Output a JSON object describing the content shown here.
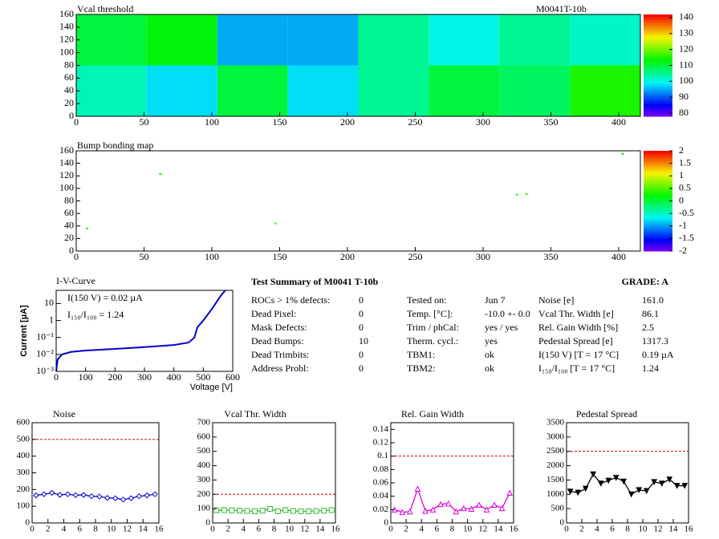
{
  "chart_data": [
    {
      "type": "heatmap",
      "title": "Vcal threshold",
      "subtitle": "M0041T-10b",
      "xbins": [
        0,
        52,
        104,
        156,
        208,
        260,
        312,
        364,
        416
      ],
      "ybins": [
        0,
        80,
        160
      ],
      "values": [
        [
          103,
          98,
          110,
          98,
          105,
          110,
          108,
          115
        ],
        [
          110,
          113,
          95,
          95,
          105,
          100,
          105,
          102
        ]
      ],
      "xlim": [
        0,
        416
      ],
      "xticks": [
        0,
        50,
        100,
        150,
        200,
        250,
        300,
        350,
        400
      ],
      "ylim": [
        0,
        160
      ],
      "yticks": [
        0,
        20,
        40,
        60,
        80,
        100,
        120,
        140,
        160
      ],
      "zlim": [
        78,
        142
      ],
      "zticks": [
        80,
        90,
        100,
        110,
        120,
        130,
        140
      ]
    },
    {
      "type": "scatter",
      "title": "Bump bonding map",
      "x": [
        8,
        62,
        147,
        325,
        332,
        403
      ],
      "y": [
        36,
        123,
        44,
        90,
        91,
        155
      ],
      "z": [
        0.4,
        0.3,
        0.5,
        0.3,
        0.4,
        0.2
      ],
      "xlim": [
        0,
        416
      ],
      "xticks": [
        0,
        50,
        100,
        150,
        200,
        250,
        300,
        350,
        400
      ],
      "ylim": [
        0,
        160
      ],
      "yticks": [
        0,
        20,
        40,
        60,
        80,
        100,
        120,
        140,
        160
      ],
      "zlim": [
        -2,
        2
      ],
      "zticks": [
        -2,
        -1.5,
        -1,
        -0.5,
        0,
        0.5,
        1,
        1.5,
        2
      ]
    },
    {
      "type": "line",
      "title": "I-V-Curve",
      "xlabel": "Voltage [V]",
      "ylabel": "Current [µA]",
      "annotations": [
        "I(150 V) = 0.02 µA",
        "I₁₅₀/I₁₀₀ =  1.24"
      ],
      "x": [
        0,
        5,
        20,
        50,
        100,
        200,
        300,
        400,
        450,
        470,
        480,
        500,
        530,
        560,
        575
      ],
      "series": [
        {
          "color": "#0000cc",
          "values": [
            0.001,
            0.005,
            0.01,
            0.014,
            0.017,
            0.021,
            0.027,
            0.036,
            0.05,
            0.1,
            0.4,
            1,
            5,
            30,
            60
          ]
        }
      ],
      "xlim": [
        0,
        600
      ],
      "xticks": [
        0,
        100,
        200,
        300,
        400,
        500,
        600
      ],
      "ylog": true,
      "ylim": [
        0.001,
        60
      ],
      "yticks": [
        {
          "value": 0.001,
          "label": "10⁻³"
        },
        {
          "value": 0.01,
          "label": "10⁻²"
        },
        {
          "value": 0.1,
          "label": "10⁻¹"
        },
        1,
        10
      ]
    },
    {
      "type": "line",
      "title": "Noise",
      "marker": "diamond",
      "threshold": 500,
      "x": [
        0.5,
        1.5,
        2.5,
        3.5,
        4.5,
        5.5,
        6.5,
        7.5,
        8.5,
        9.5,
        10.5,
        11.5,
        12.5,
        13.5,
        14.5,
        15.5
      ],
      "series": [
        {
          "color": "#0000cc",
          "values": [
            165,
            172,
            180,
            168,
            172,
            166,
            168,
            160,
            158,
            150,
            148,
            140,
            148,
            160,
            165,
            172
          ]
        }
      ],
      "xlim": [
        0,
        16
      ],
      "xticks": [
        0,
        2,
        4,
        6,
        8,
        10,
        12,
        14,
        16
      ],
      "ylim": [
        0,
        600
      ],
      "yticks": [
        0,
        100,
        200,
        300,
        400,
        500,
        600
      ]
    },
    {
      "type": "line",
      "title": "Vcal Thr. Width",
      "marker": "square",
      "threshold": 200,
      "x": [
        0.5,
        1.5,
        2.5,
        3.5,
        4.5,
        5.5,
        6.5,
        7.5,
        8.5,
        9.5,
        10.5,
        11.5,
        12.5,
        13.5,
        14.5,
        15.5
      ],
      "series": [
        {
          "color": "#33bb33",
          "values": [
            88,
            90,
            88,
            86,
            84,
            82,
            86,
            98,
            82,
            90,
            84,
            82,
            82,
            84,
            86,
            90
          ]
        }
      ],
      "xlim": [
        0,
        16
      ],
      "xticks": [
        0,
        2,
        4,
        6,
        8,
        10,
        12,
        14,
        16
      ],
      "ylim": [
        0,
        700
      ],
      "yticks": [
        0,
        100,
        200,
        300,
        400,
        500,
        600,
        700
      ]
    },
    {
      "type": "line",
      "title": "Rel. Gain Width",
      "marker": "triangle",
      "threshold": 0.1,
      "x": [
        0.5,
        1.5,
        2.5,
        3.5,
        4.5,
        5.5,
        6.5,
        7.5,
        8.5,
        9.5,
        10.5,
        11.5,
        12.5,
        13.5,
        14.5,
        15.5
      ],
      "series": [
        {
          "color": "#dd00dd",
          "values": [
            0.02,
            0.016,
            0.017,
            0.051,
            0.018,
            0.02,
            0.028,
            0.029,
            0.017,
            0.022,
            0.021,
            0.027,
            0.02,
            0.027,
            0.022,
            0.045
          ]
        }
      ],
      "xlim": [
        0,
        16
      ],
      "xticks": [
        0,
        2,
        4,
        6,
        8,
        10,
        12,
        14,
        16
      ],
      "ylim": [
        0,
        0.15
      ],
      "yticks": [
        0,
        0.02,
        0.04,
        0.06,
        0.08,
        0.1,
        0.12,
        0.14
      ]
    },
    {
      "type": "line",
      "title": "Pedestal Spread",
      "marker": "down",
      "threshold": 2500,
      "x": [
        0.5,
        1.5,
        2.5,
        3.5,
        4.5,
        5.5,
        6.5,
        7.5,
        8.5,
        9.5,
        10.5,
        11.5,
        12.5,
        13.5,
        14.5,
        15.5
      ],
      "series": [
        {
          "color": "#000000",
          "values": [
            1100,
            1060,
            1200,
            1700,
            1380,
            1480,
            1580,
            1450,
            1000,
            1150,
            1120,
            1430,
            1380,
            1520,
            1300,
            1300
          ]
        }
      ],
      "xlim": [
        0,
        16
      ],
      "xticks": [
        0,
        2,
        4,
        6,
        8,
        10,
        12,
        14,
        16
      ],
      "ylim": [
        0,
        3500
      ],
      "yticks": [
        0,
        500,
        1000,
        1500,
        2000,
        2500,
        3000,
        3500
      ]
    }
  ],
  "summary": {
    "title": "Test Summary of M0041     T-10b",
    "grade": "GRADE:  A",
    "left": [
      [
        "ROCs > 1% defects:",
        "0"
      ],
      [
        "Dead Pixel:",
        "0"
      ],
      [
        "Mask Defects:",
        "0"
      ],
      [
        "Dead Bumps:",
        "10"
      ],
      [
        "Dead Trimbits:",
        "0"
      ],
      [
        "Address Probl:",
        "0"
      ]
    ],
    "middle": [
      [
        "Tested on:",
        "Jun 7"
      ],
      [
        "Temp. [°C]:",
        "-10.0 +- 0.0"
      ],
      [
        "Trim / phCal:",
        "yes / yes"
      ],
      [
        "Therm. cycl.:",
        "yes"
      ],
      [
        "TBM1:",
        "ok"
      ],
      [
        "TBM2:",
        "ok"
      ]
    ],
    "right": [
      [
        "Noise [e]",
        "161.0"
      ],
      [
        "Vcal Thr. Width [e]",
        "86.1"
      ],
      [
        "Rel. Gain Width [%]",
        "2.5"
      ],
      [
        "Pedestal Spread [e]",
        "1317.3"
      ],
      [
        "I(150 V) [T = 17 °C]",
        "0.19 µA"
      ],
      [
        "I₁₅₀/I₁₀₀  [T = 17 °C]",
        "1.24"
      ]
    ]
  }
}
